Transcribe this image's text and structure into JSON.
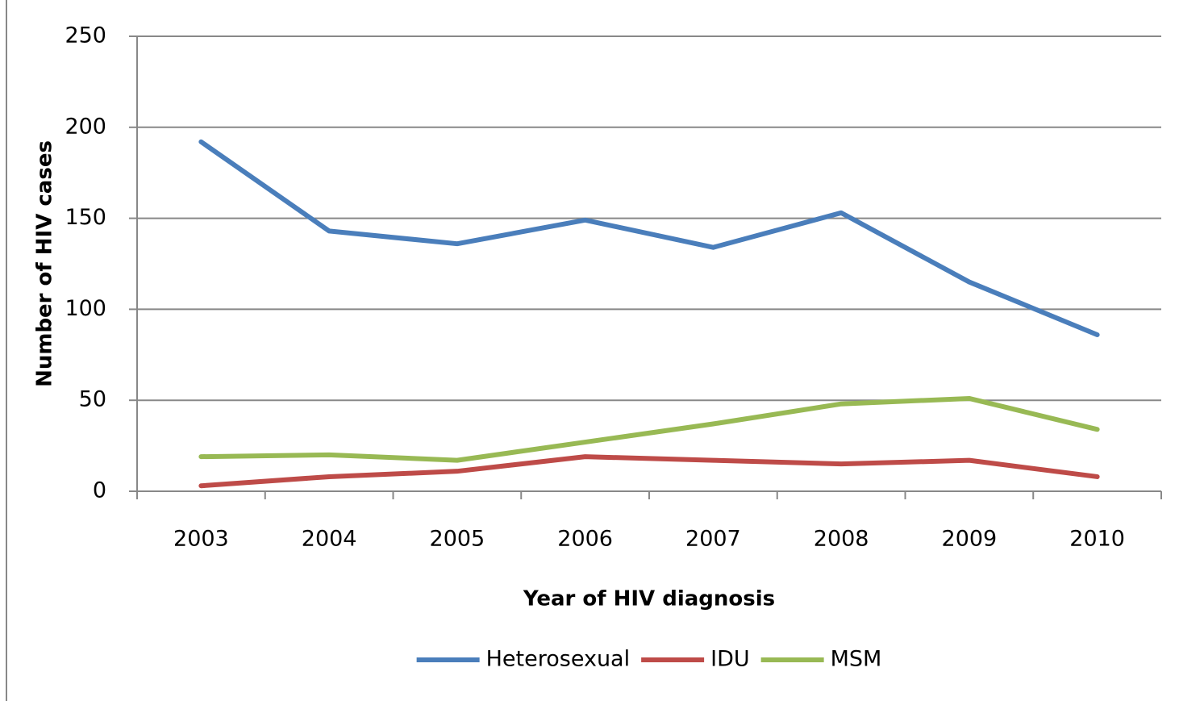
{
  "chart_data": {
    "type": "line",
    "x_label": "Year of HIV diagnosis",
    "y_label": "Number of HIV cases",
    "categories": [
      "2003",
      "2004",
      "2005",
      "2006",
      "2007",
      "2008",
      "2009",
      "2010"
    ],
    "series": [
      {
        "name": "Heterosexual",
        "color": "#4a7ebb",
        "values": [
          192,
          143,
          136,
          149,
          134,
          153,
          115,
          86
        ]
      },
      {
        "name": "IDU",
        "color": "#be4b48",
        "values": [
          3,
          8,
          11,
          19,
          17,
          15,
          17,
          8
        ]
      },
      {
        "name": "MSM",
        "color": "#98b954",
        "values": [
          19,
          20,
          17,
          27,
          37,
          48,
          51,
          34
        ]
      }
    ],
    "ylim": [
      0,
      250
    ],
    "yticks": [
      0,
      50,
      100,
      150,
      200,
      250
    ],
    "grid": true,
    "legend": "bottom"
  }
}
